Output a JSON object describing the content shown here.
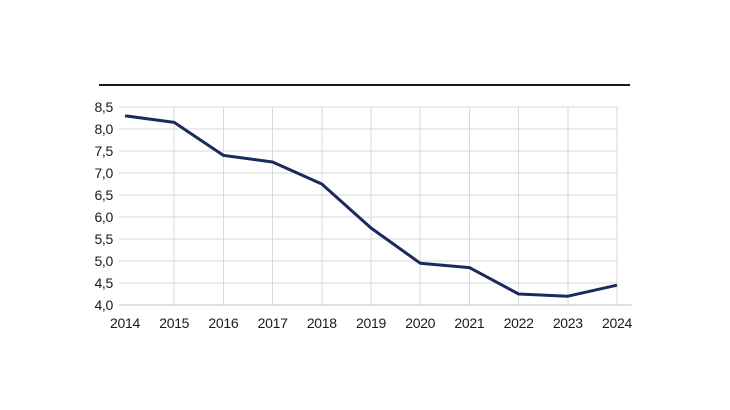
{
  "page": {
    "background_color": "#ffffff"
  },
  "header": {
    "rule_color": "#1a1a1a"
  },
  "chart_data": {
    "type": "line",
    "title": "",
    "xlabel": "",
    "ylabel": "",
    "categories": [
      "2014",
      "2015",
      "2016",
      "2017",
      "2018",
      "2019",
      "2020",
      "2021",
      "2022",
      "2023",
      "2024"
    ],
    "values": [
      8.3,
      8.15,
      7.4,
      7.25,
      6.75,
      5.75,
      4.95,
      4.85,
      4.25,
      4.2,
      4.45
    ],
    "ylim": [
      4.0,
      8.5
    ],
    "ytick_step": 0.5,
    "ytick_labels": [
      "8,5",
      "8,0",
      "7,5",
      "7,0",
      "6,5",
      "6,0",
      "5,5",
      "5,0",
      "4,5",
      "4,0"
    ],
    "decimal_separator": ",",
    "grid": true,
    "legend": "none",
    "line_color": "#1a2a5e",
    "grid_color": "#d9d9d9",
    "axis_color": "#bfbfbf",
    "label_color": "#1a1a1a"
  }
}
